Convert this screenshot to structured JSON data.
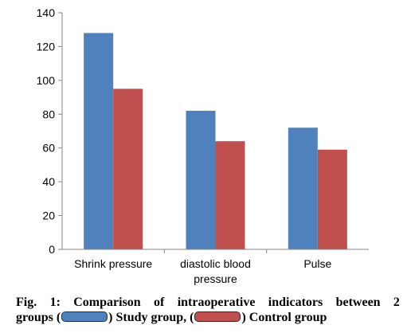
{
  "chart_data": {
    "type": "bar",
    "categories": [
      "Shrink pressure",
      "diastolic blood pressure",
      "Pulse"
    ],
    "category_label_lines": [
      [
        "Shrink pressure"
      ],
      [
        "diastolic blood",
        "pressure"
      ],
      [
        "Pulse"
      ]
    ],
    "series": [
      {
        "values": [
          128,
          82,
          72
        ],
        "color": "#4f81bd"
      },
      {
        "values": [
          95,
          64,
          59
        ],
        "color": "#c0504d"
      }
    ],
    "ylim": [
      0,
      140
    ],
    "yticks": [
      0,
      20,
      40,
      60,
      80,
      100,
      120,
      140
    ],
    "grid": false,
    "xlabel": "",
    "ylabel": ""
  },
  "caption": {
    "line1_words": [
      "Fig.",
      "1:",
      "Comparison",
      "of",
      "intraoperative",
      "indicators",
      "between",
      "2"
    ],
    "prefix": "groups (",
    "study_label": ") Study group, (",
    "control_label": ") Control group"
  }
}
